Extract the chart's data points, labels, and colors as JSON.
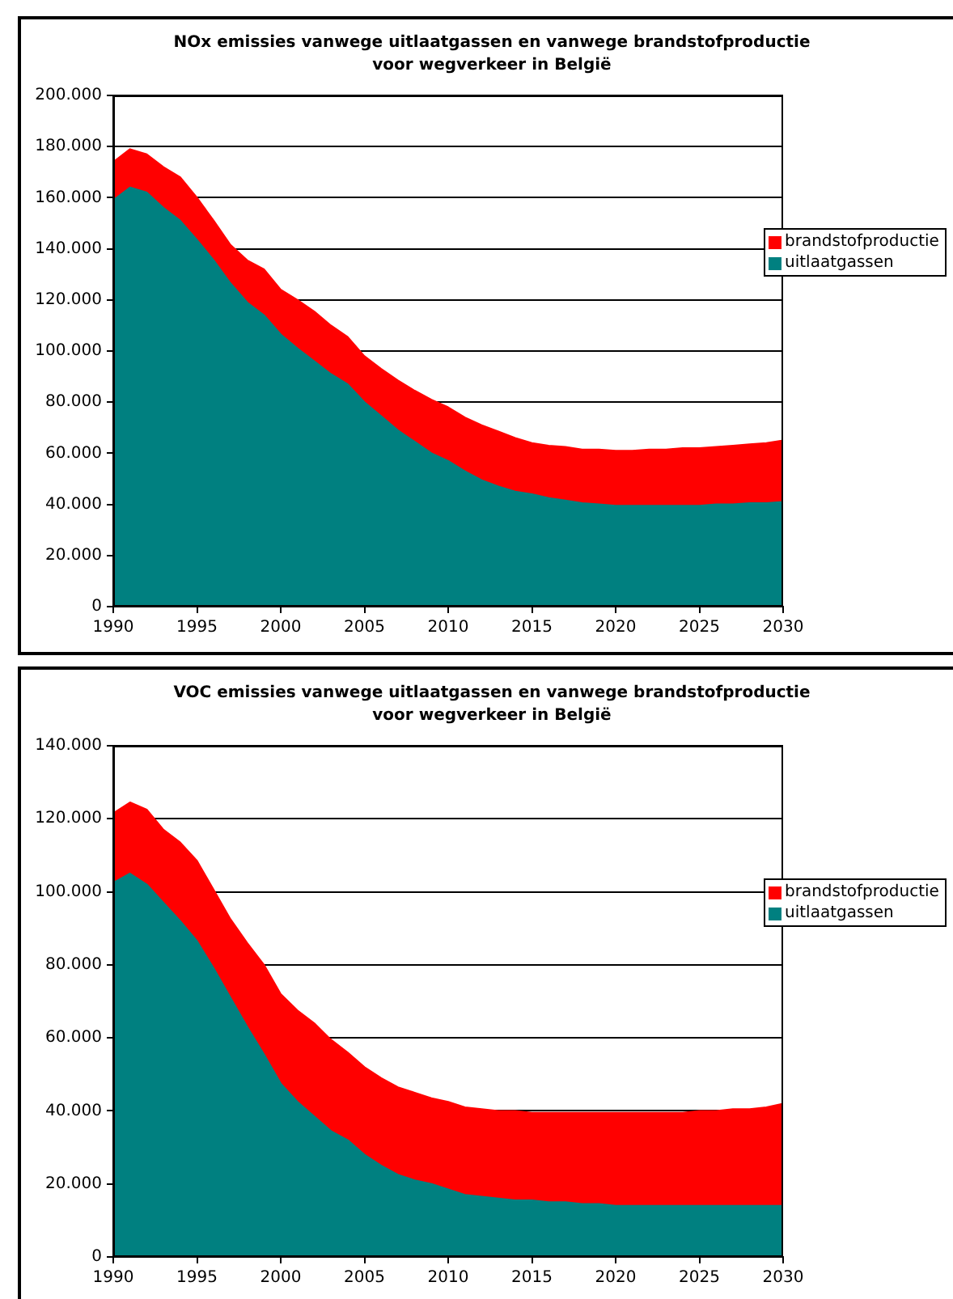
{
  "chart_data": [
    {
      "type": "area",
      "title": "NOx emissies vanwege uitlaatgassen en vanwege brandstofproductie voor wegverkeer in België",
      "stacked": true,
      "grid": "y",
      "legend": "right",
      "x": [
        1990,
        1991,
        1992,
        1993,
        1994,
        1995,
        1996,
        1997,
        1998,
        1999,
        2000,
        2001,
        2002,
        2003,
        2004,
        2005,
        2006,
        2007,
        2008,
        2009,
        2010,
        2011,
        2012,
        2013,
        2014,
        2015,
        2016,
        2017,
        2018,
        2019,
        2020,
        2021,
        2022,
        2023,
        2024,
        2025,
        2026,
        2027,
        2028,
        2029,
        2030
      ],
      "xlim": [
        1990,
        2030
      ],
      "xticks": [
        1990,
        1995,
        2000,
        2005,
        2010,
        2015,
        2020,
        2025,
        2030
      ],
      "ylim": [
        0,
        200000
      ],
      "yticks": [
        0,
        {
          "value": 20000,
          "label": "20.000"
        },
        {
          "value": 40000,
          "label": "40.000"
        },
        {
          "value": 60000,
          "label": "60.000"
        },
        {
          "value": 80000,
          "label": "80.000"
        },
        {
          "value": 100000,
          "label": "100.000"
        },
        {
          "value": 120000,
          "label": "120.000"
        },
        {
          "value": 140000,
          "label": "140.000"
        },
        {
          "value": 160000,
          "label": "160.000"
        },
        {
          "value": 180000,
          "label": "180.000"
        },
        {
          "value": 200000,
          "label": "200.000"
        }
      ],
      "series": [
        {
          "name": "uitlaatgassen",
          "color": "#008080",
          "values": [
            159000,
            164000,
            162000,
            156000,
            151000,
            143500,
            135500,
            126500,
            119000,
            114000,
            106500,
            101000,
            96000,
            91000,
            87000,
            80000,
            74500,
            69000,
            64500,
            60000,
            57000,
            53000,
            49500,
            47000,
            45000,
            44000,
            42500,
            41500,
            40500,
            40000,
            39500,
            39500,
            39500,
            39500,
            39500,
            39500,
            40000,
            40000,
            40500,
            40500,
            41000
          ]
        },
        {
          "name": "brandstofproductie",
          "color": "#ff0000",
          "values": [
            15000,
            15000,
            15000,
            16000,
            17000,
            16500,
            15500,
            15000,
            16500,
            18000,
            17500,
            19000,
            19500,
            19000,
            18500,
            18000,
            18500,
            19500,
            20000,
            21000,
            21000,
            21000,
            21500,
            21500,
            21000,
            20000,
            20500,
            21000,
            21000,
            21500,
            21500,
            21500,
            22000,
            22000,
            22500,
            22500,
            22500,
            23000,
            23000,
            23500,
            24000
          ]
        }
      ]
    },
    {
      "type": "area",
      "title": "VOC emissies vanwege uitlaatgassen en vanwege brandstofproductie voor wegverkeer in België",
      "stacked": true,
      "grid": "y",
      "legend": "right",
      "x": [
        1990,
        1991,
        1992,
        1993,
        1994,
        1995,
        1996,
        1997,
        1998,
        1999,
        2000,
        2001,
        2002,
        2003,
        2004,
        2005,
        2006,
        2007,
        2008,
        2009,
        2010,
        2011,
        2012,
        2013,
        2014,
        2015,
        2016,
        2017,
        2018,
        2019,
        2020,
        2021,
        2022,
        2023,
        2024,
        2025,
        2026,
        2027,
        2028,
        2029,
        2030
      ],
      "xlim": [
        1990,
        2030
      ],
      "xticks": [
        1990,
        1995,
        2000,
        2005,
        2010,
        2015,
        2020,
        2025,
        2030
      ],
      "ylim": [
        0,
        140000
      ],
      "yticks": [
        0,
        {
          "value": 20000,
          "label": "20.000"
        },
        {
          "value": 40000,
          "label": "40.000"
        },
        {
          "value": 60000,
          "label": "60.000"
        },
        {
          "value": 80000,
          "label": "80.000"
        },
        {
          "value": 100000,
          "label": "100.000"
        },
        {
          "value": 120000,
          "label": "120.000"
        },
        {
          "value": 140000,
          "label": "140.000"
        }
      ],
      "series": [
        {
          "name": "uitlaatgassen",
          "color": "#008080",
          "values": [
            102500,
            105000,
            102000,
            97000,
            92000,
            86500,
            79000,
            71000,
            63000,
            55500,
            47500,
            42500,
            38500,
            34500,
            32000,
            28000,
            25000,
            22500,
            21000,
            20000,
            18500,
            17000,
            16500,
            16000,
            15500,
            15500,
            15000,
            15000,
            14500,
            14500,
            14000,
            14000,
            14000,
            14000,
            14000,
            14000,
            14000,
            14000,
            14000,
            14000,
            14000
          ]
        },
        {
          "name": "brandstofproductie",
          "color": "#ff0000",
          "values": [
            19000,
            19500,
            20500,
            20000,
            21500,
            22000,
            21500,
            21500,
            23000,
            24500,
            24500,
            25000,
            25500,
            25000,
            24000,
            24000,
            24000,
            24000,
            24000,
            23500,
            24000,
            24000,
            24000,
            24000,
            24500,
            24000,
            24500,
            24500,
            25000,
            25000,
            25500,
            25500,
            25500,
            25500,
            25500,
            26000,
            26000,
            26500,
            26500,
            27000,
            28000
          ]
        }
      ]
    }
  ]
}
